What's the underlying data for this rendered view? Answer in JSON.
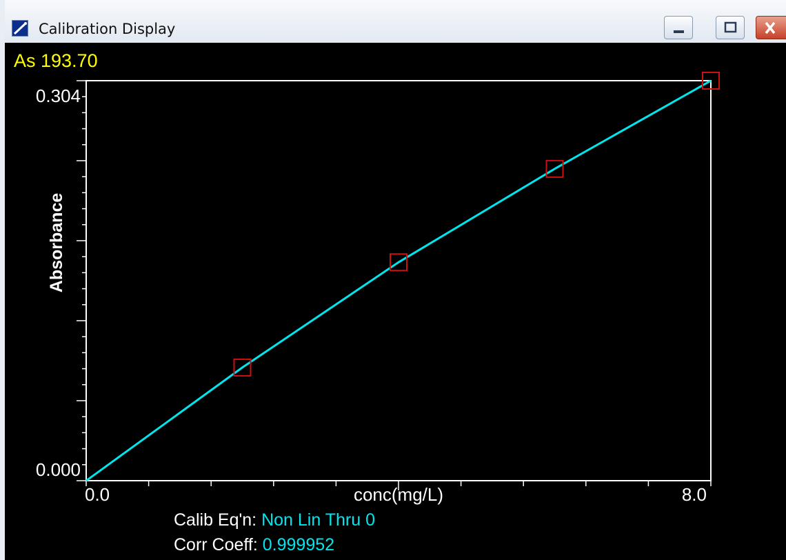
{
  "window": {
    "title": "Calibration Display",
    "element_label": "As 193.70"
  },
  "calibration": {
    "eq_label": "Calib Eq'n:",
    "eq_value": "Non Lin Thru 0",
    "corr_label": "Corr Coeff:",
    "corr_value": "0.999952"
  },
  "colors": {
    "background": "#000000",
    "curve": "#00e5ee",
    "points": "#cc1111",
    "axes": "#ffffff",
    "element_label": "#ffff00"
  },
  "icons": {
    "app": "calibration-chart-icon",
    "minimize": "minimize-icon",
    "maximize": "maximize-icon",
    "close": "close-icon"
  },
  "chart_data": {
    "type": "scatter",
    "xlabel": "conc(mg/L)",
    "ylabel": "Absorbance",
    "xlim": [
      0,
      8
    ],
    "ylim": [
      0,
      0.304
    ],
    "x_tick_labels": [
      "0.0",
      "8.0"
    ],
    "y_tick_labels": [
      "0.000",
      "0.304"
    ],
    "series": [
      {
        "points": [
          {
            "x": 2,
            "y": 0.086
          },
          {
            "x": 4,
            "y": 0.166
          },
          {
            "x": 6,
            "y": 0.237
          },
          {
            "x": 8,
            "y": 0.304
          }
        ]
      }
    ],
    "fit_curve": [
      {
        "x": 0,
        "y": 0
      },
      {
        "x": 2,
        "y": 0.086
      },
      {
        "x": 4,
        "y": 0.166
      },
      {
        "x": 6,
        "y": 0.237
      },
      {
        "x": 8,
        "y": 0.304
      }
    ],
    "grid": false,
    "legend": "none"
  }
}
